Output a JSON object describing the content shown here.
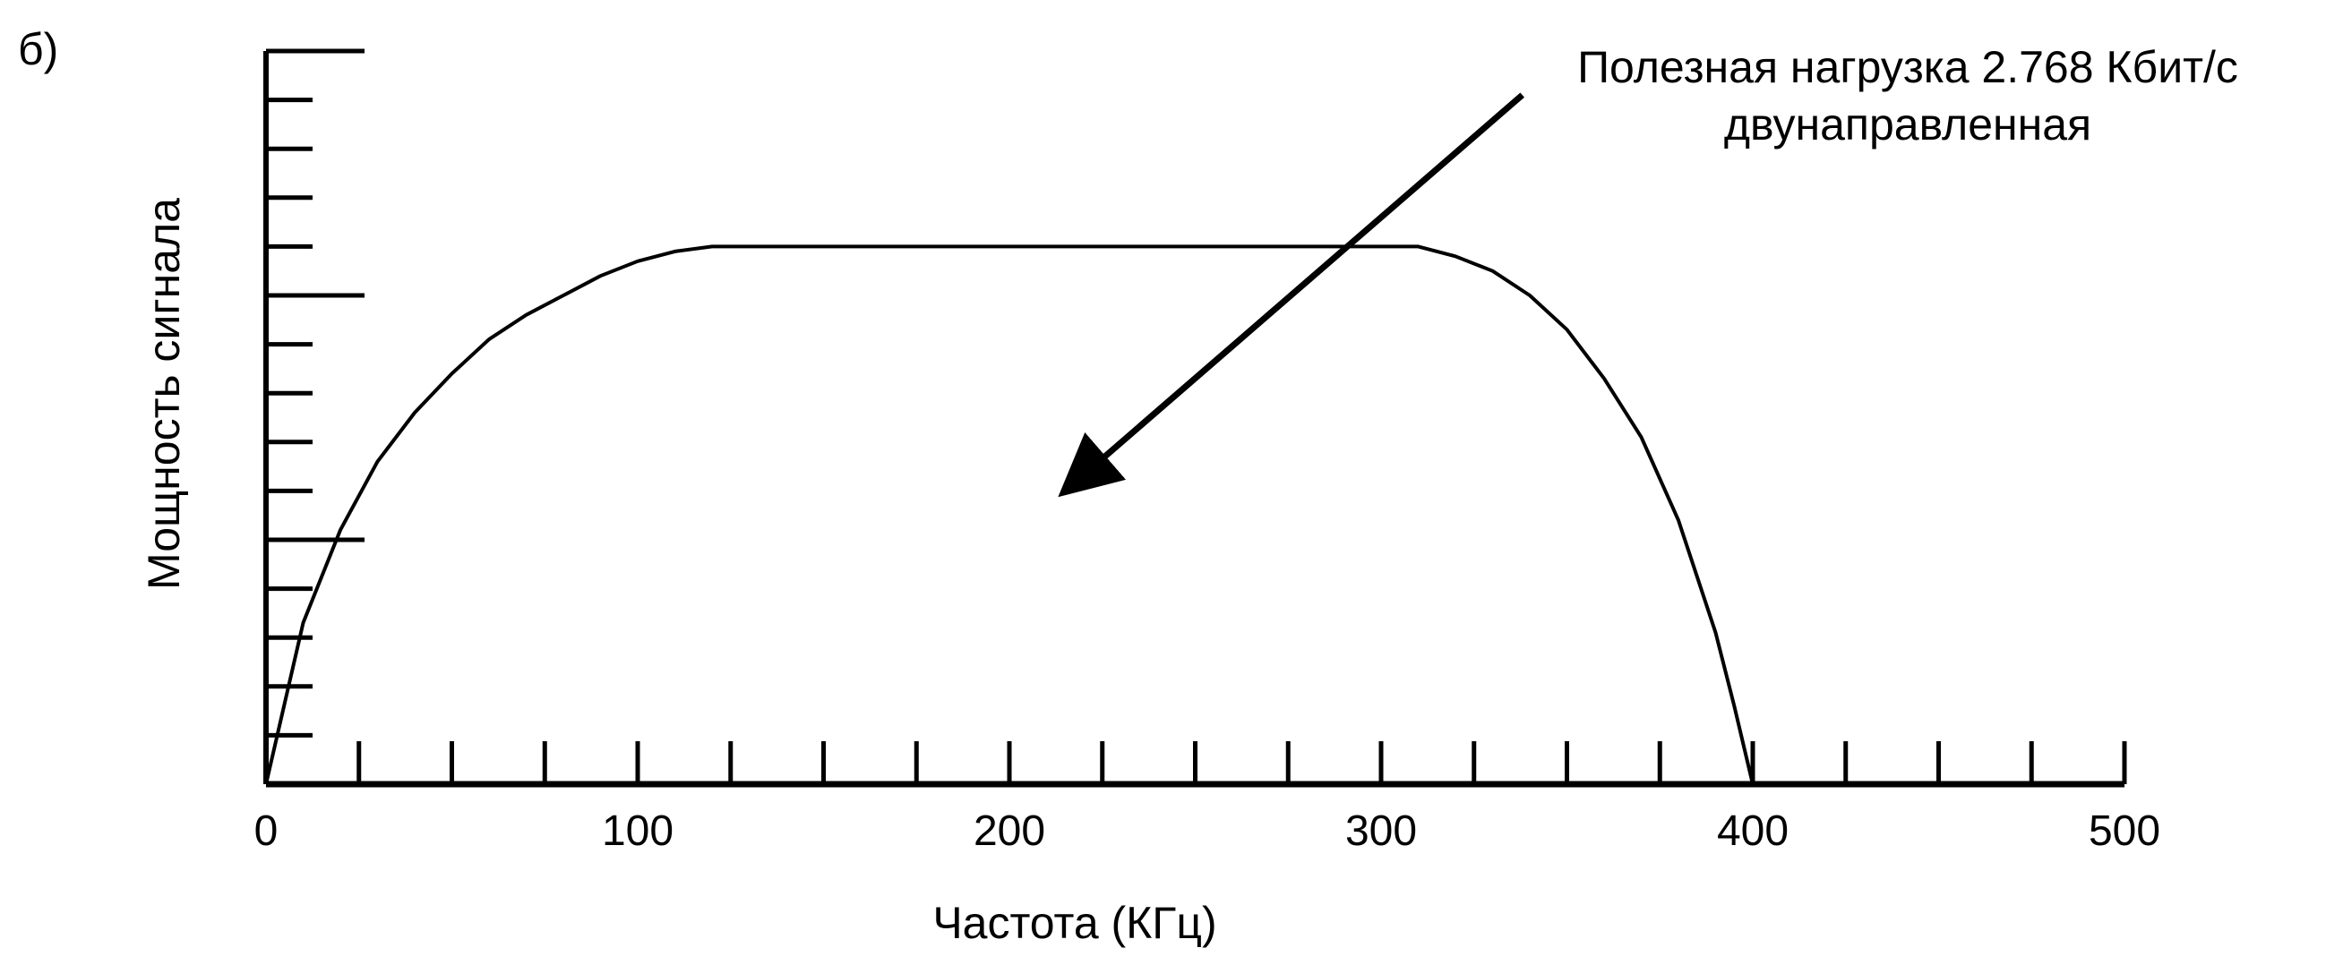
{
  "panel_label": "б)",
  "chart_data": {
    "type": "area",
    "title": "",
    "xlabel": "Частота (КГц)",
    "ylabel": "Мощность сигнала",
    "xlim": [
      0,
      500
    ],
    "x_tick_labels": [
      "0",
      "100",
      "200",
      "300",
      "400",
      "500"
    ],
    "x_major_ticks": [
      0,
      100,
      200,
      300,
      400,
      500
    ],
    "x_minor_ticks": [
      25,
      50,
      75,
      125,
      150,
      175,
      225,
      250,
      275,
      325,
      350,
      375,
      425,
      450,
      475
    ],
    "y_tick_count": 15,
    "y_long_tick_indices": [
      5,
      10
    ],
    "ylim": [
      0,
      15
    ],
    "grid": false,
    "legend": "none",
    "series": [
      {
        "x": [
          0,
          10,
          20,
          30,
          40,
          50,
          60,
          70,
          80,
          90,
          100,
          110,
          120,
          125,
          300,
          310,
          320,
          330,
          340,
          350,
          360,
          370,
          380,
          390,
          395,
          400
        ],
        "y": [
          0,
          3.3,
          5.2,
          6.6,
          7.6,
          8.4,
          9.1,
          9.6,
          10.0,
          10.4,
          10.7,
          10.9,
          11.0,
          11.0,
          11.0,
          11.0,
          10.8,
          10.5,
          10.0,
          9.3,
          8.3,
          7.1,
          5.4,
          3.1,
          1.6,
          0
        ]
      }
    ],
    "annotations": [
      {
        "text_lines": [
          "Полезная нагрузка 2.768 Кбит/с",
          "двунаправленная"
        ],
        "arrow_from": [
          338,
          14.1
        ],
        "arrow_to": [
          215,
          6
        ]
      }
    ]
  }
}
